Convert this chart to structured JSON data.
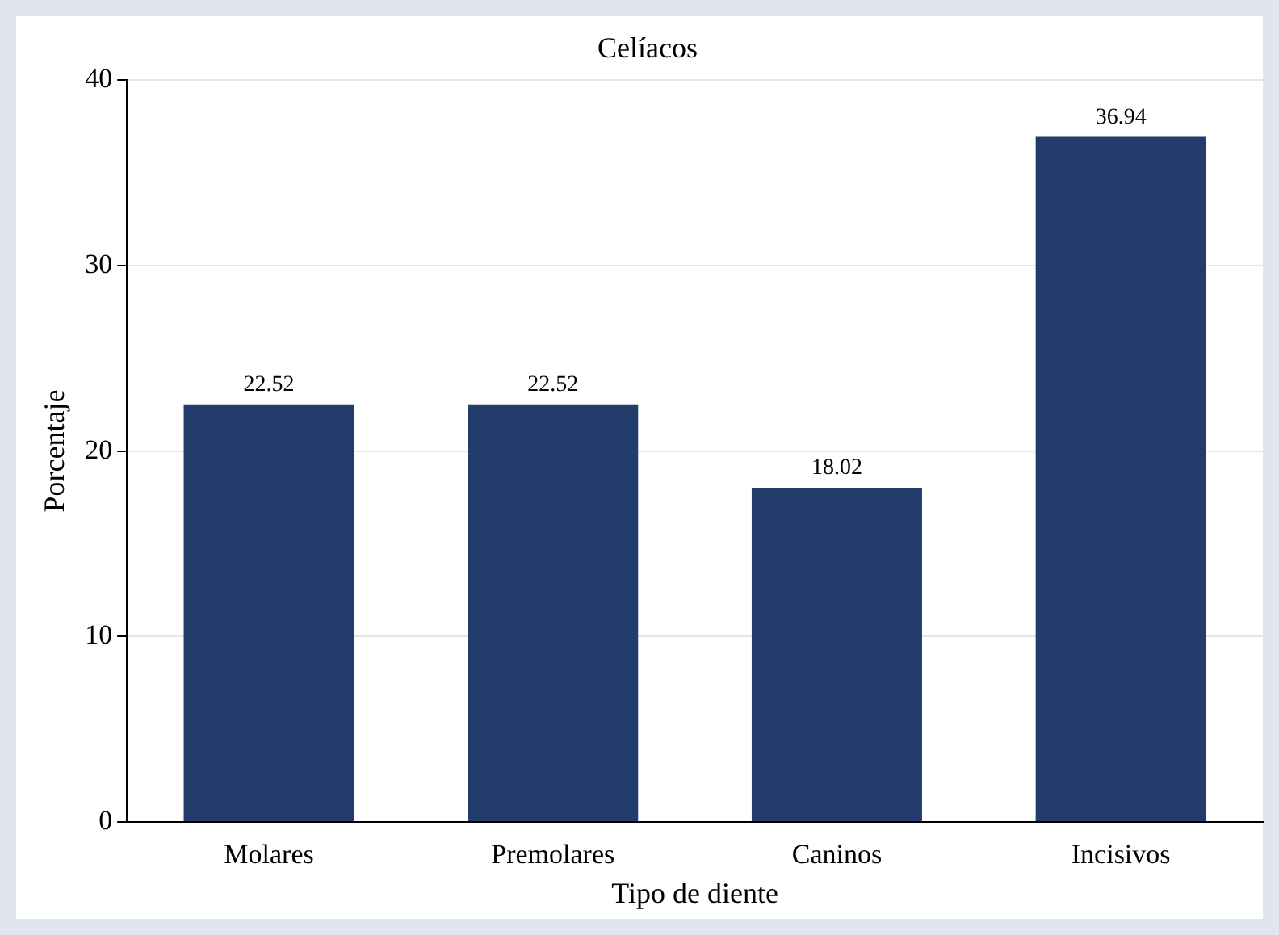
{
  "chart_data": {
    "type": "bar",
    "title": "Celíacos",
    "xlabel": "Tipo de diente",
    "ylabel": "Porcentaje",
    "categories": [
      "Molares",
      "Premolares",
      "Caninos",
      "Incisivos"
    ],
    "values": [
      22.52,
      22.52,
      18.02,
      36.94
    ],
    "color": "#243c6c",
    "ylim": [
      0,
      40
    ],
    "yticks": [
      0,
      10,
      20,
      30,
      40
    ],
    "grid": "y",
    "data_labels": true
  }
}
